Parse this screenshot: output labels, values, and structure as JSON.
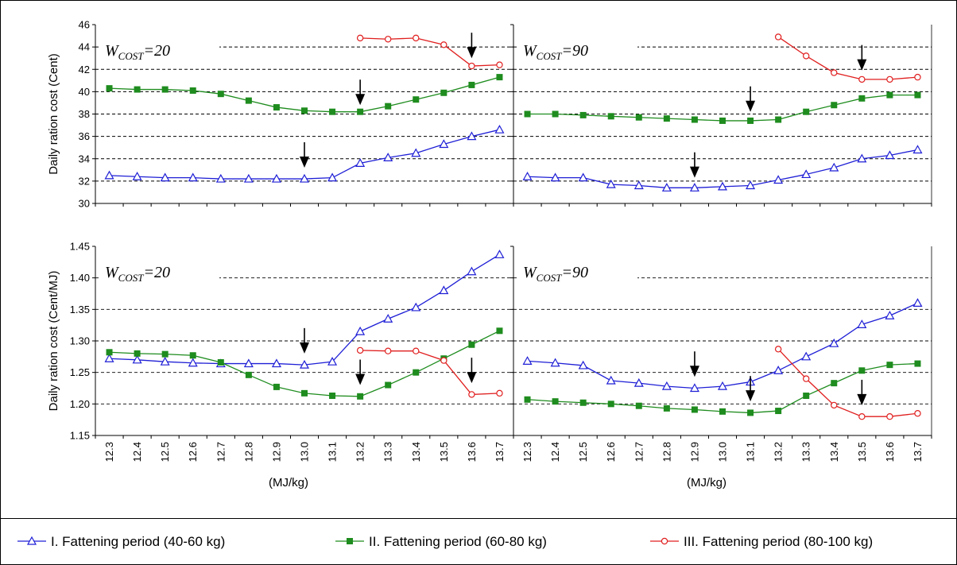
{
  "colors": {
    "series_1": "#1f1fd6",
    "series_2": "#1e8c1e",
    "series_3": "#e01e1e",
    "grid": "#000000",
    "arrow": "#000000"
  },
  "chart_data": [
    {
      "type": "line",
      "panel": "top-left",
      "annotation": {
        "main": "W",
        "sub": "COST",
        "tail": "=20"
      },
      "ylabel": "Daily ration cost (Cent)",
      "ylim": [
        30,
        46
      ],
      "yticks": [
        "30",
        "32",
        "34",
        "36",
        "38",
        "40",
        "42",
        "44",
        "46"
      ],
      "categories": [
        "12.3",
        "12.4",
        "12.5",
        "12.6",
        "12.7",
        "12.8",
        "12.9",
        "13.0",
        "13.1",
        "13.2",
        "13.3",
        "13.4",
        "13.5",
        "13.6",
        "13.7"
      ],
      "series": [
        {
          "values": [
            32.5,
            32.4,
            32.3,
            32.3,
            32.2,
            32.2,
            32.2,
            32.2,
            32.3,
            33.6,
            34.1,
            34.5,
            35.3,
            36.0,
            36.6
          ]
        },
        {
          "values": [
            40.3,
            40.2,
            40.2,
            40.1,
            39.8,
            39.2,
            38.6,
            38.3,
            38.2,
            38.2,
            38.7,
            39.3,
            39.9,
            40.6,
            41.3
          ]
        },
        {
          "values": [
            null,
            null,
            null,
            null,
            null,
            null,
            null,
            null,
            null,
            44.8,
            44.7,
            44.8,
            44.2,
            42.3,
            42.4
          ]
        }
      ],
      "arrows": [
        {
          "x": "13.0",
          "y": 33.2
        },
        {
          "x": "13.2",
          "y": 38.8
        },
        {
          "x": "13.6",
          "y": 43.0
        }
      ]
    },
    {
      "type": "line",
      "panel": "top-right",
      "annotation": {
        "main": "W",
        "sub": "COST",
        "tail": "=90"
      },
      "ylim": [
        30,
        46
      ],
      "categories": [
        "12.3",
        "12.4",
        "12.5",
        "12.6",
        "12.7",
        "12.8",
        "12.9",
        "13.0",
        "13.1",
        "13.2",
        "13.3",
        "13.4",
        "13.5",
        "13.6",
        "13.7"
      ],
      "series": [
        {
          "values": [
            32.4,
            32.3,
            32.3,
            31.7,
            31.6,
            31.4,
            31.4,
            31.5,
            31.6,
            32.1,
            32.6,
            33.2,
            34.0,
            34.3,
            34.8
          ]
        },
        {
          "values": [
            38.0,
            38.0,
            37.9,
            37.8,
            37.7,
            37.6,
            37.5,
            37.4,
            37.4,
            37.5,
            38.2,
            38.8,
            39.4,
            39.7,
            39.7
          ]
        },
        {
          "values": [
            null,
            null,
            null,
            null,
            null,
            null,
            null,
            null,
            null,
            44.9,
            43.2,
            41.7,
            41.1,
            41.1,
            41.3
          ]
        }
      ],
      "arrows": [
        {
          "x": "12.9",
          "y": 32.3
        },
        {
          "x": "13.1",
          "y": 38.2
        },
        {
          "x": "13.5",
          "y": 41.9
        }
      ]
    },
    {
      "type": "line",
      "panel": "bottom-left",
      "annotation": {
        "main": "W",
        "sub": "COST",
        "tail": "=20"
      },
      "ylabel": "Daily ration cost (Cent/MJ)",
      "xlabel": "(MJ/kg)",
      "ylim": [
        1.15,
        1.45
      ],
      "yticks": [
        "1.15",
        "1.20",
        "1.25",
        "1.30",
        "1.35",
        "1.40",
        "1.45"
      ],
      "categories": [
        "12.3",
        "12.4",
        "12.5",
        "12.6",
        "12.7",
        "12.8",
        "12.9",
        "13.0",
        "13.1",
        "13.2",
        "13.3",
        "13.4",
        "13.5",
        "13.6",
        "13.7"
      ],
      "series": [
        {
          "values": [
            1.272,
            1.27,
            1.267,
            1.265,
            1.264,
            1.264,
            1.264,
            1.262,
            1.267,
            1.315,
            1.335,
            1.353,
            1.38,
            1.41,
            1.437
          ]
        },
        {
          "values": [
            1.282,
            1.28,
            1.279,
            1.277,
            1.266,
            1.246,
            1.227,
            1.217,
            1.213,
            1.212,
            1.23,
            1.25,
            1.272,
            1.294,
            1.316
          ]
        },
        {
          "values": [
            null,
            null,
            null,
            null,
            null,
            null,
            null,
            null,
            null,
            1.285,
            1.284,
            1.284,
            1.269,
            1.215,
            1.217
          ]
        }
      ],
      "arrows": [
        {
          "x": "13.0",
          "y": 1.28
        },
        {
          "x": "13.2",
          "y": 1.23
        },
        {
          "x": "13.6",
          "y": 1.233
        }
      ]
    },
    {
      "type": "line",
      "panel": "bottom-right",
      "annotation": {
        "main": "W",
        "sub": "COST",
        "tail": "=90"
      },
      "xlabel": "(MJ/kg)",
      "ylim": [
        1.15,
        1.45
      ],
      "categories": [
        "12.3",
        "12.4",
        "12.5",
        "12.6",
        "12.7",
        "12.8",
        "12.9",
        "13.0",
        "13.1",
        "13.2",
        "13.3",
        "13.4",
        "13.5",
        "13.6",
        "13.7"
      ],
      "series": [
        {
          "values": [
            1.268,
            1.265,
            1.261,
            1.237,
            1.233,
            1.228,
            1.225,
            1.228,
            1.235,
            1.253,
            1.275,
            1.296,
            1.326,
            1.34,
            1.36
          ]
        },
        {
          "values": [
            1.207,
            1.204,
            1.202,
            1.2,
            1.197,
            1.193,
            1.191,
            1.188,
            1.186,
            1.189,
            1.213,
            1.233,
            1.253,
            1.262,
            1.264
          ]
        },
        {
          "values": [
            null,
            null,
            null,
            null,
            null,
            null,
            null,
            null,
            null,
            1.287,
            1.24,
            1.198,
            1.18,
            1.18,
            1.185
          ]
        }
      ],
      "arrows": [
        {
          "x": "12.9",
          "y": 1.243
        },
        {
          "x": "13.1",
          "y": 1.204
        },
        {
          "x": "13.5",
          "y": 1.198
        }
      ]
    }
  ],
  "legend": [
    {
      "label": "I. Fattening period (40-60 kg)",
      "marker": "triangle"
    },
    {
      "label": "II. Fattening period (60-80 kg)",
      "marker": "square"
    },
    {
      "label": "III. Fattening period (80-100 kg)",
      "marker": "circle"
    }
  ]
}
